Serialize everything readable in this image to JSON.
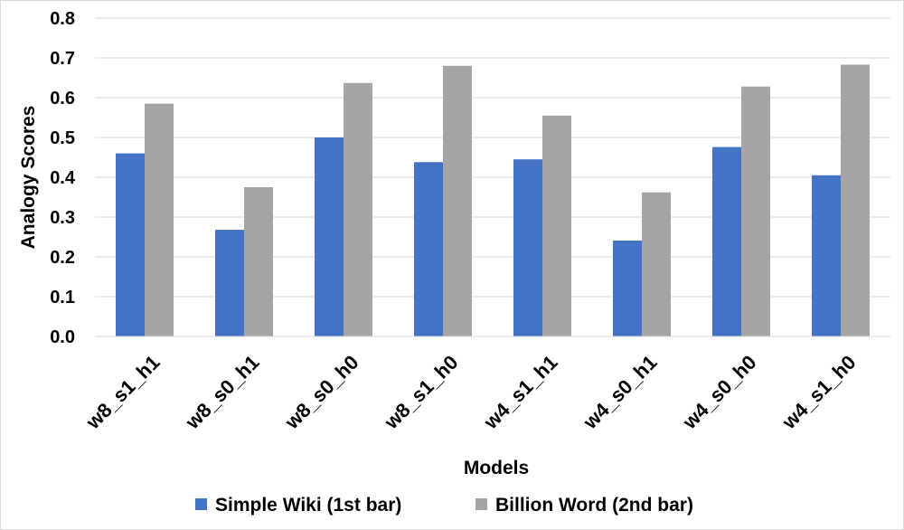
{
  "chart_data": {
    "type": "bar",
    "title": "",
    "xlabel": "Models",
    "ylabel": "Analogy Scores",
    "ylim": [
      0,
      0.8
    ],
    "yticks": [
      "0.0",
      "0.1",
      "0.2",
      "0.3",
      "0.4",
      "0.5",
      "0.6",
      "0.7",
      "0.8"
    ],
    "categories": [
      "w8_s1_h1",
      "w8_s0_h1",
      "w8_s0_h0",
      "w8_s1_h0",
      "w4_s1_h1",
      "w4_s0_h1",
      "w4_s0_h0",
      "w4_s1_h0"
    ],
    "series": [
      {
        "name": "Simple Wiki (1st bar)",
        "color": "#4472C4",
        "values": [
          0.46,
          0.268,
          0.5,
          0.438,
          0.445,
          0.241,
          0.476,
          0.405
        ]
      },
      {
        "name": "Billion Word (2nd bar)",
        "color": "#A5A5A5",
        "values": [
          0.585,
          0.375,
          0.637,
          0.68,
          0.555,
          0.362,
          0.628,
          0.683
        ]
      }
    ],
    "grid": true,
    "legend_position": "bottom"
  }
}
